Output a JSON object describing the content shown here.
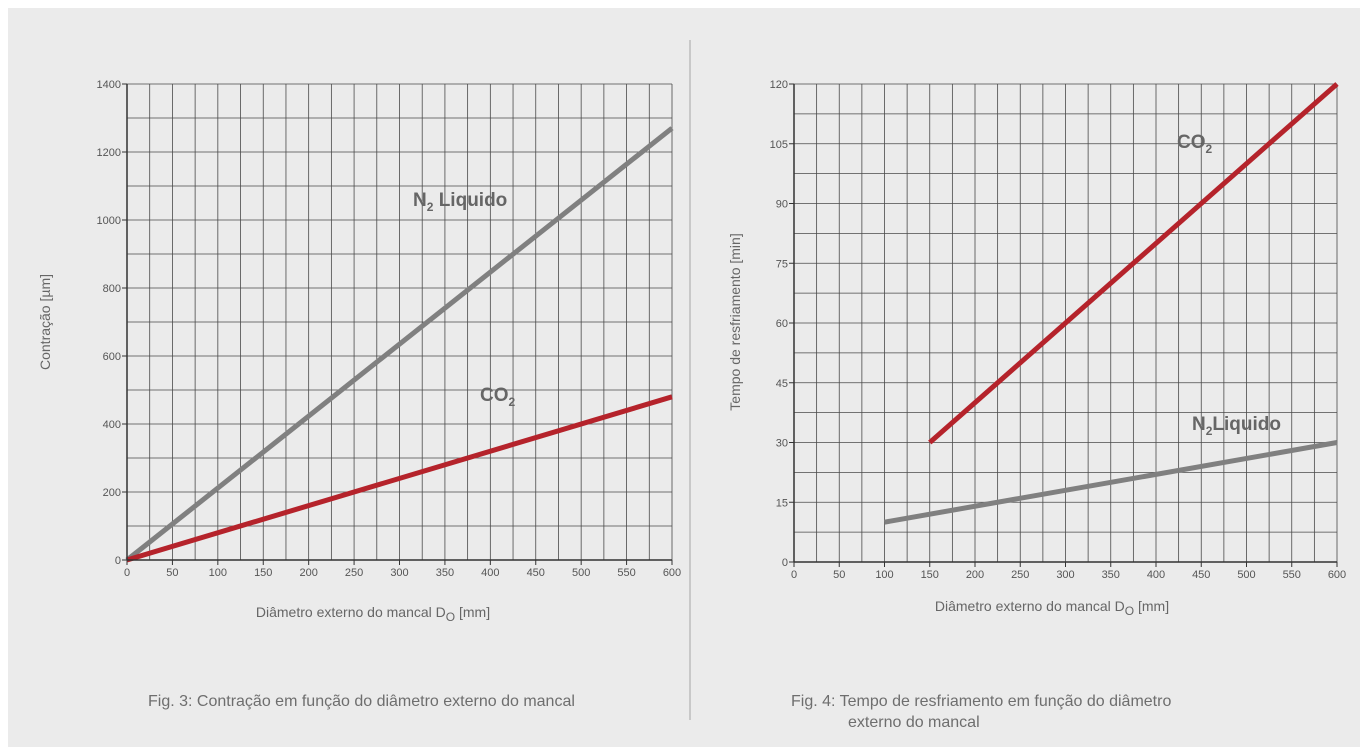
{
  "chart_data": [
    {
      "type": "line",
      "xlabel": "Diâmetro externo do mancal D",
      "xlabel_sub": "O",
      "xlabel_unit": " [mm]",
      "ylabel": "Contração  [µm]",
      "xlim": [
        0,
        600
      ],
      "ylim": [
        0,
        1400
      ],
      "x_ticks": [
        0,
        50,
        100,
        150,
        200,
        250,
        300,
        350,
        400,
        450,
        500,
        550,
        600
      ],
      "y_ticks": [
        0,
        200,
        400,
        600,
        800,
        1000,
        1200,
        1400
      ],
      "x_grid_step": 25,
      "y_grid_step": 100,
      "grid": true,
      "series": [
        {
          "name": "N",
          "name_sub": "2",
          "name_rest": " Liquido",
          "color": "#808080",
          "x": [
            0,
            600
          ],
          "y": [
            0,
            1270
          ]
        },
        {
          "name": "CO",
          "name_sub": "2",
          "name_rest": "",
          "color": "#b5232b",
          "x": [
            0,
            600
          ],
          "y": [
            0,
            480
          ]
        }
      ],
      "caption": "Fig. 3: Contração em função do diâmetro externo do mancal"
    },
    {
      "type": "line",
      "xlabel": "Diâmetro externo do mancal D",
      "xlabel_sub": "O",
      "xlabel_unit": " [mm]",
      "ylabel": "Tempo de resfriamento [min]",
      "xlim": [
        0,
        600
      ],
      "ylim": [
        0,
        120
      ],
      "x_ticks": [
        0,
        50,
        100,
        150,
        200,
        250,
        300,
        350,
        400,
        450,
        500,
        550,
        600
      ],
      "y_ticks": [
        0,
        15,
        30,
        45,
        60,
        75,
        90,
        105,
        120
      ],
      "x_grid_step": 25,
      "y_grid_step": 7.5,
      "grid": true,
      "series": [
        {
          "name": "CO",
          "name_sub": "2",
          "name_rest": "",
          "color": "#b5232b",
          "x": [
            150,
            600
          ],
          "y": [
            30,
            120
          ]
        },
        {
          "name": "N",
          "name_sub": "2",
          "name_rest": "Liquido",
          "color": "#808080",
          "x": [
            100,
            600
          ],
          "y": [
            10,
            30
          ]
        }
      ],
      "caption_line1": "Fig. 4: Tempo de resfriamento em função do diâmetro",
      "caption_line2": "externo do mancal"
    }
  ]
}
